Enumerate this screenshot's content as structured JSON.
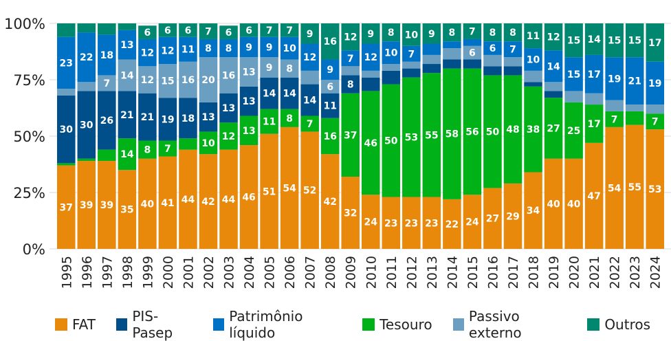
{
  "chart_data": {
    "type": "bar",
    "stacked": true,
    "title": "",
    "xlabel": "",
    "ylabel": "",
    "ylim": [
      0,
      100
    ],
    "yticks": [
      "0%",
      "25%",
      "50%",
      "75%",
      "100%"
    ],
    "grid": true,
    "legend_position": "bottom",
    "categories": [
      "1995",
      "1996",
      "1997",
      "1998",
      "1999",
      "2000",
      "2001",
      "2002",
      "2003",
      "2004",
      "2005",
      "2006",
      "2007",
      "2008",
      "2009",
      "2010",
      "2011",
      "2012",
      "2013",
      "2014",
      "2015",
      "2016",
      "2017",
      "2018",
      "2019",
      "2020",
      "2021",
      "2022",
      "2023",
      "2024"
    ],
    "series": [
      {
        "name": "FAT",
        "color": "#E8890C",
        "values": [
          37,
          39,
          39,
          35,
          40,
          41,
          44,
          42,
          44,
          46,
          51,
          54,
          52,
          42,
          32,
          24,
          23,
          23,
          23,
          22,
          24,
          27,
          29,
          34,
          40,
          40,
          47,
          54,
          55,
          53
        ],
        "labeled": [
          true,
          true,
          true,
          true,
          true,
          true,
          true,
          true,
          true,
          true,
          true,
          true,
          true,
          true,
          true,
          true,
          true,
          true,
          true,
          true,
          true,
          true,
          true,
          true,
          true,
          true,
          true,
          true,
          true,
          true
        ]
      },
      {
        "name": "Tesouro",
        "color": "#00B117",
        "values": [
          1,
          1,
          5,
          14,
          8,
          7,
          5,
          10,
          12,
          13,
          11,
          8,
          7,
          16,
          37,
          46,
          50,
          53,
          55,
          58,
          56,
          50,
          48,
          38,
          27,
          25,
          17,
          7,
          6,
          7
        ],
        "labeled": [
          false,
          false,
          false,
          true,
          true,
          true,
          false,
          true,
          true,
          true,
          true,
          true,
          true,
          true,
          true,
          true,
          true,
          true,
          true,
          true,
          true,
          true,
          true,
          true,
          true,
          true,
          true,
          true,
          false,
          true
        ]
      },
      {
        "name": "PIS-Pasep",
        "color": "#004F8A",
        "values": [
          30,
          30,
          26,
          21,
          21,
          19,
          18,
          13,
          13,
          13,
          14,
          14,
          14,
          11,
          8,
          6,
          6,
          4,
          4,
          4,
          4,
          4,
          4,
          2,
          3,
          0,
          0,
          0,
          0,
          0
        ],
        "labeled": [
          true,
          true,
          true,
          true,
          true,
          true,
          true,
          true,
          true,
          true,
          true,
          true,
          true,
          true,
          true,
          false,
          false,
          false,
          false,
          false,
          false,
          false,
          false,
          false,
          false,
          false,
          false,
          false,
          false,
          false
        ]
      },
      {
        "name": "Passivo externo",
        "color": "#6A9FC1",
        "values": [
          3,
          4,
          7,
          14,
          12,
          15,
          16,
          20,
          16,
          13,
          9,
          8,
          6,
          6,
          4,
          3,
          3,
          3,
          4,
          5,
          6,
          5,
          4,
          5,
          4,
          5,
          5,
          5,
          3,
          4
        ],
        "labeled": [
          false,
          false,
          true,
          true,
          true,
          true,
          true,
          true,
          true,
          true,
          true,
          true,
          false,
          true,
          false,
          false,
          false,
          false,
          false,
          false,
          true,
          false,
          false,
          false,
          false,
          false,
          false,
          false,
          false,
          false
        ]
      },
      {
        "name": "Patrimônio líquido",
        "color": "#0072C6",
        "values": [
          23,
          22,
          18,
          13,
          12,
          12,
          11,
          8,
          8,
          9,
          9,
          10,
          12,
          9,
          7,
          12,
          10,
          7,
          5,
          3,
          3,
          6,
          7,
          10,
          14,
          15,
          17,
          19,
          21,
          19
        ],
        "labeled": [
          true,
          true,
          true,
          true,
          true,
          true,
          true,
          true,
          true,
          true,
          true,
          true,
          true,
          true,
          true,
          true,
          true,
          true,
          false,
          false,
          false,
          true,
          true,
          true,
          true,
          true,
          true,
          true,
          true,
          true
        ]
      },
      {
        "name": "Outros",
        "color": "#008770",
        "values": [
          6,
          4,
          5,
          4,
          6,
          6,
          6,
          7,
          6,
          6,
          7,
          7,
          9,
          16,
          12,
          9,
          8,
          10,
          9,
          8,
          7,
          8,
          8,
          11,
          12,
          15,
          14,
          15,
          15,
          17
        ],
        "labeled": [
          false,
          false,
          false,
          false,
          true,
          true,
          true,
          true,
          true,
          true,
          true,
          true,
          true,
          true,
          true,
          true,
          true,
          true,
          true,
          true,
          true,
          true,
          true,
          true,
          true,
          true,
          true,
          true,
          true,
          true
        ]
      }
    ],
    "legend": [
      "FAT",
      "PIS-Pasep",
      "Patrimônio líquido",
      "Tesouro",
      "Passivo externo",
      "Outros"
    ]
  }
}
